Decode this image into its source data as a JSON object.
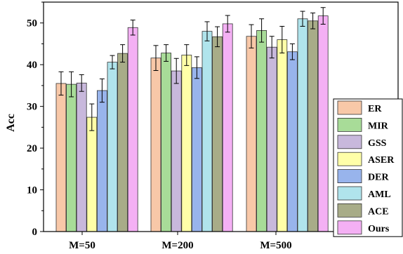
{
  "chart_data": {
    "type": "bar",
    "title": "",
    "xlabel": "",
    "ylabel": "Acc",
    "ylim": [
      0,
      55
    ],
    "yticks": [
      0,
      10,
      20,
      30,
      40,
      50
    ],
    "grid": false,
    "legend_position": "bottom-right",
    "categories": [
      "M=50",
      "M=200",
      "M=500"
    ],
    "series": [
      {
        "name": "ER",
        "color": "#f8c8a8",
        "values": [
          35.5,
          41.6,
          46.8
        ],
        "errors": [
          2.8,
          3.0,
          2.8
        ]
      },
      {
        "name": "MIR",
        "color": "#a8dc98",
        "values": [
          35.3,
          42.8,
          48.2
        ],
        "errors": [
          3.0,
          2.0,
          2.8
        ]
      },
      {
        "name": "GSS",
        "color": "#c8b8dc",
        "values": [
          35.6,
          38.5,
          44.2
        ],
        "errors": [
          2.0,
          3.0,
          2.6
        ]
      },
      {
        "name": "ASER",
        "color": "#ffffa8",
        "values": [
          27.4,
          42.3,
          46.0
        ],
        "errors": [
          3.2,
          2.5,
          3.2
        ]
      },
      {
        "name": "DER",
        "color": "#98b4ec",
        "values": [
          33.8,
          39.3,
          43.1
        ],
        "errors": [
          2.8,
          2.6,
          1.9
        ]
      },
      {
        "name": "AML",
        "color": "#b0e4ec",
        "values": [
          40.6,
          48.0,
          51.0
        ],
        "errors": [
          1.6,
          2.3,
          1.8
        ]
      },
      {
        "name": "ACE",
        "color": "#a8ac88",
        "values": [
          42.7,
          46.7,
          50.5
        ],
        "errors": [
          2.1,
          2.4,
          1.9
        ]
      },
      {
        "name": "Ours",
        "color": "#f4b0f4",
        "values": [
          48.9,
          49.8,
          51.7
        ],
        "errors": [
          1.8,
          2.0,
          2.0
        ]
      }
    ]
  }
}
